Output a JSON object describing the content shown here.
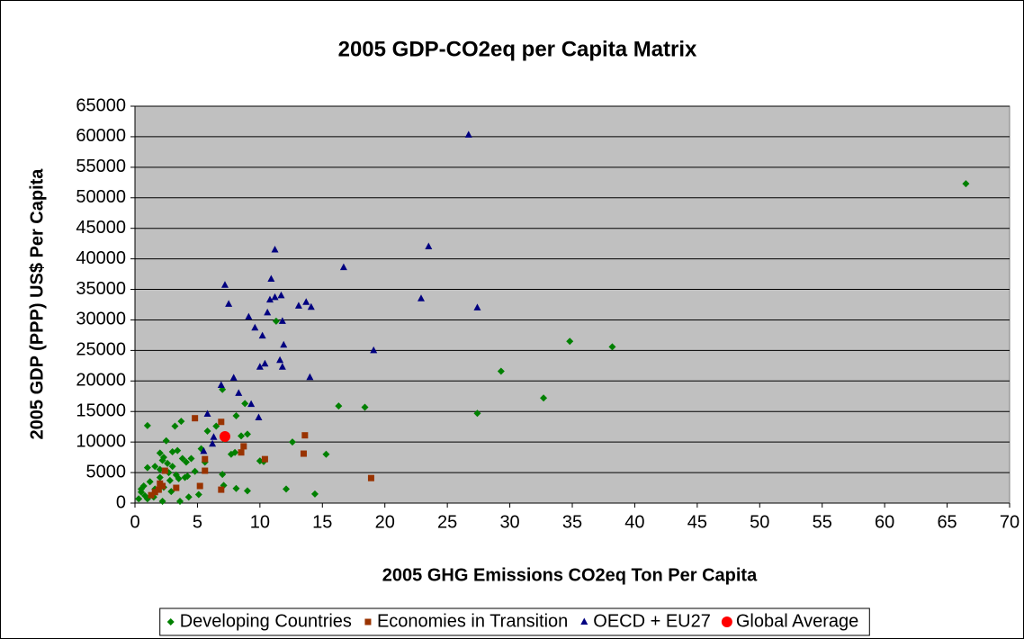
{
  "chart_data": {
    "type": "scatter",
    "title": "2005 GDP-CO2eq per Capita Matrix",
    "xlabel": "2005 GHG Emissions CO2eq Ton Per Capita",
    "ylabel": "2005 GDP (PPP) US$ Per Capita",
    "xlim": [
      0,
      70
    ],
    "xticks": [
      0,
      5,
      10,
      15,
      20,
      25,
      30,
      35,
      40,
      45,
      50,
      55,
      60,
      65,
      70
    ],
    "ylim": [
      0,
      65000
    ],
    "yticks": [
      0,
      5000,
      10000,
      15000,
      20000,
      25000,
      30000,
      35000,
      40000,
      45000,
      50000,
      55000,
      60000,
      65000
    ],
    "grid": true,
    "legend": "bottom",
    "series": [
      {
        "name": "Developing Countries",
        "color": "#008000",
        "marker": "diamond",
        "x": [
          66.5,
          34.8,
          38.2,
          29.3,
          32.7,
          27.4,
          18.4,
          16.3,
          15.3,
          14.4,
          12.1,
          12.6,
          10.3,
          10.0,
          11.3,
          7.0,
          8.8,
          8.1,
          8.5,
          9.0,
          7.7,
          8.0,
          6.5,
          5.8,
          7.0,
          7.1,
          8.1,
          9.0,
          7.1,
          5.3,
          5.6,
          4.5,
          4.8,
          4.2,
          5.1,
          4.3,
          3.7,
          3.2,
          1.0,
          2.5,
          3.0,
          3.4,
          2.0,
          3.8,
          4.1,
          2.2,
          2.6,
          3.0,
          1.6,
          1.0,
          2.7,
          3.3,
          2.0,
          3.5,
          2.8,
          1.2,
          0.7,
          2.3,
          2.9,
          1.6,
          0.5,
          0.8,
          1.0,
          0.3,
          2.2,
          3.6,
          1.5,
          0.5,
          2.0,
          2.3,
          4.0
        ],
        "y": [
          52300,
          26500,
          25600,
          21600,
          17200,
          14700,
          15700,
          15900,
          8000,
          1500,
          2300,
          10000,
          6800,
          6900,
          29800,
          18600,
          16300,
          14300,
          11000,
          11300,
          8000,
          8300,
          12600,
          11800,
          4700,
          2900,
          2400,
          2000,
          10500,
          8900,
          6700,
          7300,
          5200,
          4400,
          1400,
          1000,
          13400,
          12600,
          12700,
          10200,
          8400,
          8600,
          8200,
          7300,
          6700,
          7000,
          6500,
          6000,
          6000,
          5800,
          5000,
          4600,
          4200,
          4000,
          3700,
          3500,
          2800,
          2600,
          1900,
          2300,
          1800,
          1200,
          700,
          700,
          300,
          300,
          1000,
          2300,
          5500,
          7500,
          4200
        ]
      },
      {
        "name": "Economies in Transition",
        "color": "#993300",
        "marker": "square",
        "x": [
          4.8,
          6.9,
          13.6,
          8.7,
          8.5,
          13.5,
          18.9,
          10.4,
          5.6,
          5.6,
          5.2,
          6.9,
          2.4,
          3.3,
          2.0,
          1.6,
          1.3,
          1.9,
          2.2
        ],
        "y": [
          13900,
          13300,
          11100,
          9300,
          8300,
          8100,
          4100,
          7200,
          7200,
          5300,
          2800,
          2200,
          5300,
          2500,
          3200,
          1800,
          1300,
          2200,
          2800
        ]
      },
      {
        "name": "OECD + EU27",
        "color": "#000080",
        "marker": "triangle",
        "x": [
          26.7,
          11.2,
          23.5,
          16.7,
          7.2,
          10.9,
          7.5,
          10.8,
          11.2,
          11.7,
          13.1,
          13.7,
          14.1,
          22.9,
          27.4,
          10.6,
          11.8,
          9.1,
          9.6,
          10.2,
          11.9,
          19.1,
          11.6,
          10.4,
          10.0,
          11.8,
          7.9,
          14.0,
          6.9,
          8.3,
          9.3,
          9.9,
          5.8,
          5.5,
          6.2,
          6.3
        ],
        "y": [
          60300,
          41500,
          42000,
          38600,
          35700,
          36700,
          32600,
          33300,
          33700,
          34000,
          32300,
          32900,
          32100,
          33500,
          32000,
          31200,
          29800,
          30500,
          28700,
          27400,
          25900,
          25000,
          23400,
          22800,
          22300,
          22300,
          20500,
          20600,
          19300,
          18000,
          16200,
          14000,
          14600,
          8500,
          9700,
          10800
        ]
      },
      {
        "name": "Global Average",
        "color": "#ff0000",
        "marker": "circle",
        "x": [
          7.2
        ],
        "y": [
          10900
        ]
      }
    ]
  }
}
